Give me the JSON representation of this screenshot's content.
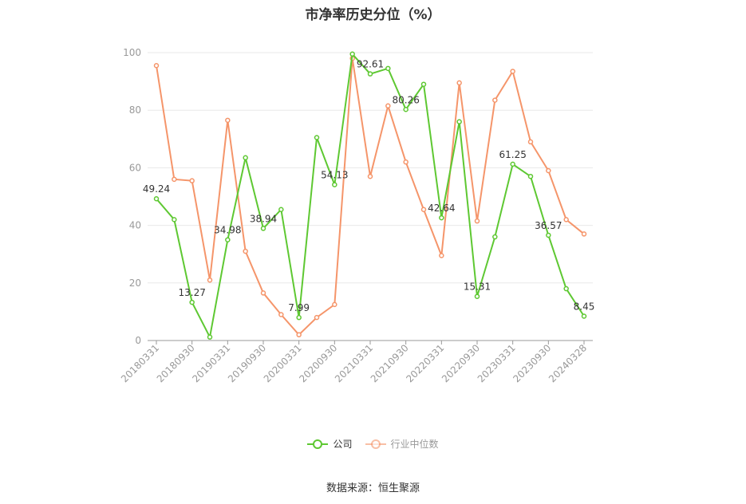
{
  "source_label": "数据来源：恒生聚源",
  "chart_data": {
    "type": "line",
    "title": "市净率历史分位（%）",
    "xlabel": "",
    "ylabel": "",
    "ylim": [
      0,
      100
    ],
    "yticks": [
      0,
      20,
      40,
      60,
      80,
      100
    ],
    "grid": true,
    "legend_position": "bottom",
    "x": [
      "20180331",
      "20180630",
      "20180930",
      "20181231",
      "20190331",
      "20190630",
      "20190930",
      "20191231",
      "20200331",
      "20200630",
      "20200930",
      "20201231",
      "20210331",
      "20210630",
      "20210930",
      "20211231",
      "20220331",
      "20220630",
      "20220930",
      "20221231",
      "20230331",
      "20230630",
      "20230930",
      "20231231",
      "20240328"
    ],
    "xtick_labels": [
      "20180331",
      "20180930",
      "20190331",
      "20190930",
      "20200331",
      "20200930",
      "20210331",
      "20210930",
      "20220331",
      "20220930",
      "20230331",
      "20230930",
      "20240328"
    ],
    "series": [
      {
        "name": "公司",
        "color": "#5ec832",
        "values": [
          49.24,
          42,
          13.27,
          1.2,
          34.98,
          63.5,
          38.94,
          45.5,
          7.99,
          70.5,
          54.13,
          99.5,
          92.61,
          94.5,
          80.26,
          89,
          42.64,
          76,
          15.31,
          36,
          61.25,
          57,
          36.57,
          18,
          8.45
        ],
        "labels": [
          "49.24",
          "",
          "13.27",
          "",
          "34.98",
          "",
          "38.94",
          "",
          "7.99",
          "",
          "54.13",
          "",
          "92.61",
          "",
          "80.26",
          "",
          "42.64",
          "",
          "15.31",
          "",
          "61.25",
          "",
          "36.57",
          "",
          "8.45"
        ]
      },
      {
        "name": "行业中位数",
        "color": "#f5956a",
        "values": [
          95.5,
          56,
          55.5,
          21,
          76.5,
          31,
          16.5,
          9,
          2,
          8,
          12.5,
          98,
          57,
          81.5,
          62,
          45.5,
          29.5,
          89.5,
          41.5,
          83.5,
          93.5,
          69,
          59,
          42,
          37
        ]
      }
    ]
  }
}
